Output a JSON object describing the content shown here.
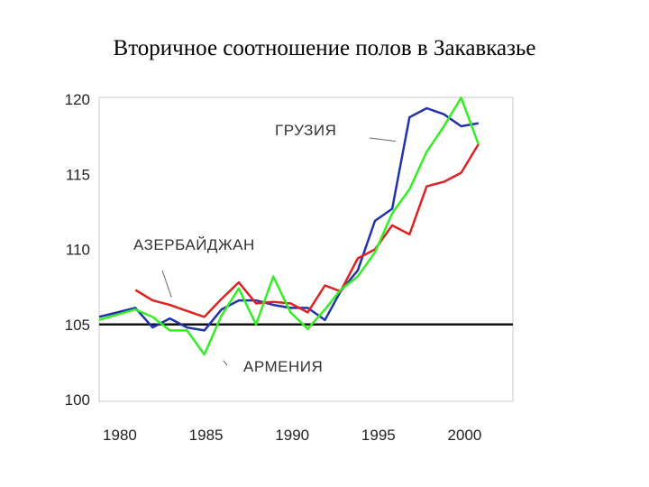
{
  "title": "Вторичное соотношение полов в Закавказье",
  "chart_data": {
    "type": "line",
    "xlim": [
      1978.8,
      2002.8
    ],
    "ylim": [
      100,
      120
    ],
    "xticks": [
      1980,
      1985,
      1990,
      1995,
      2000
    ],
    "yticks": [
      100,
      105,
      110,
      115,
      120
    ],
    "reference_line": 105,
    "grid": false,
    "series": [
      {
        "name": "ГРУЗИЯ",
        "color": "#2233aa",
        "points": [
          [
            1978.8,
            105.5
          ],
          [
            1980.9,
            106.1
          ],
          [
            1981.9,
            104.8
          ],
          [
            1982.9,
            105.4
          ],
          [
            1983.9,
            104.8
          ],
          [
            1984.9,
            104.6
          ],
          [
            1985.9,
            106.0
          ],
          [
            1986.9,
            106.6
          ],
          [
            1987.9,
            106.6
          ],
          [
            1988.9,
            106.3
          ],
          [
            1989.9,
            106.1
          ],
          [
            1990.9,
            106.1
          ],
          [
            1991.9,
            105.3
          ],
          [
            1992.8,
            107.2
          ],
          [
            1993.8,
            108.6
          ],
          [
            1994.8,
            111.9
          ],
          [
            1995.8,
            112.7
          ],
          [
            1996.8,
            118.8
          ],
          [
            1997.8,
            119.4
          ],
          [
            1998.8,
            119.0
          ],
          [
            1999.8,
            118.2
          ],
          [
            2000.8,
            118.4
          ]
        ]
      },
      {
        "name": "АЗЕРБАЙДЖАН",
        "color": "#dd2222",
        "points": [
          [
            1980.9,
            107.3
          ],
          [
            1981.9,
            106.6
          ],
          [
            1982.9,
            106.3
          ],
          [
            1983.9,
            105.9
          ],
          [
            1984.9,
            105.5
          ],
          [
            1985.9,
            106.7
          ],
          [
            1986.9,
            107.8
          ],
          [
            1987.9,
            106.4
          ],
          [
            1988.9,
            106.5
          ],
          [
            1989.9,
            106.4
          ],
          [
            1990.9,
            105.8
          ],
          [
            1991.9,
            107.6
          ],
          [
            1992.8,
            107.2
          ],
          [
            1993.8,
            109.4
          ],
          [
            1994.8,
            110.0
          ],
          [
            1995.8,
            111.6
          ],
          [
            1996.8,
            111.0
          ],
          [
            1997.8,
            114.2
          ],
          [
            1998.8,
            114.5
          ],
          [
            1999.8,
            115.1
          ],
          [
            2000.8,
            117.0
          ]
        ]
      },
      {
        "name": "АРМЕНИЯ",
        "color": "#33ee22",
        "points": [
          [
            1978.8,
            105.3
          ],
          [
            1980.9,
            106.0
          ],
          [
            1981.9,
            105.5
          ],
          [
            1982.9,
            104.6
          ],
          [
            1983.9,
            104.6
          ],
          [
            1984.9,
            103.0
          ],
          [
            1985.9,
            105.6
          ],
          [
            1986.9,
            107.4
          ],
          [
            1987.9,
            105.0
          ],
          [
            1988.9,
            108.2
          ],
          [
            1989.9,
            105.8
          ],
          [
            1990.9,
            104.7
          ],
          [
            1991.9,
            106.0
          ],
          [
            1992.8,
            107.3
          ],
          [
            1993.8,
            108.2
          ],
          [
            1994.8,
            109.8
          ],
          [
            1995.8,
            112.4
          ],
          [
            1996.8,
            114.0
          ],
          [
            1997.8,
            116.5
          ],
          [
            1998.8,
            118.2
          ],
          [
            1999.8,
            120.1
          ],
          [
            2000.8,
            117.0
          ]
        ]
      }
    ],
    "annotations": [
      {
        "text": "ГРУЗИЯ",
        "target": [
          1996.0,
          117.2
        ]
      },
      {
        "text": "АЗЕРБАЙДЖАН",
        "target": [
          1983.0,
          106.8
        ]
      },
      {
        "text": "АРМЕНИЯ",
        "target": [
          1986.0,
          102.6
        ]
      }
    ]
  }
}
